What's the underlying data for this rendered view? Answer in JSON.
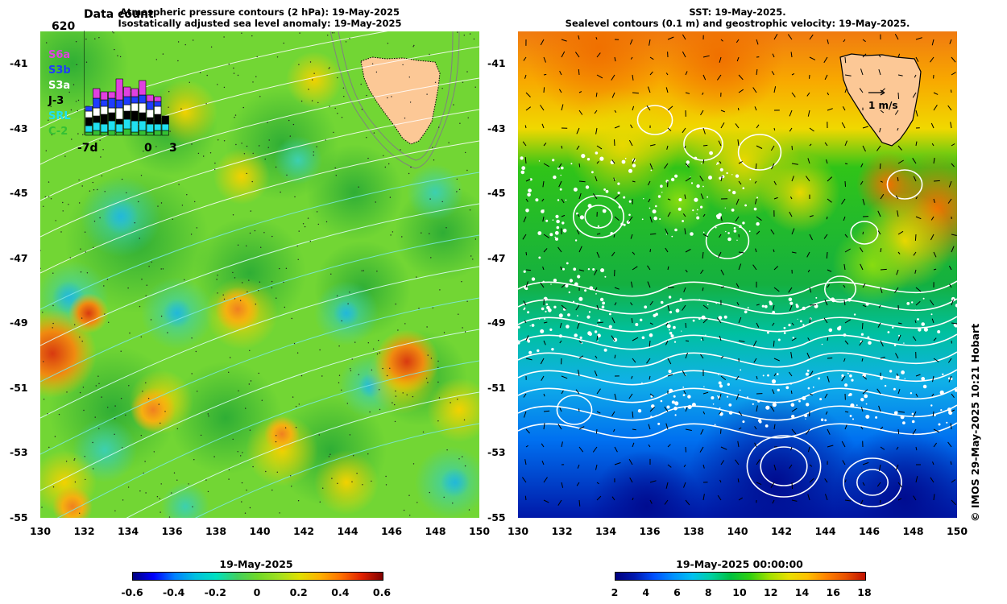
{
  "left_panel": {
    "title_line1": "Atmospheric pressure contours (2 hPa): 19-May-2025",
    "title_line2": "Isostatically adjusted sea level anomaly: 19-May-2025",
    "inset": {
      "title": "Data count",
      "count": "620",
      "missions": [
        {
          "label": "S6a",
          "color": "#e040e0"
        },
        {
          "label": "S3b",
          "color": "#1e3cff"
        },
        {
          "label": "S3a",
          "color": "#ffffff"
        },
        {
          "label": "J-3",
          "color": "#000000"
        },
        {
          "label": "SRL",
          "color": "#20e0f0"
        },
        {
          "label": "C-2",
          "color": "#34c034"
        }
      ],
      "x_labels": [
        "-7d",
        "0",
        "3"
      ]
    },
    "colorbar": {
      "date": "19-May-2025",
      "ticks": [
        "-0.6",
        "-0.4",
        "-0.2",
        "0",
        "0.2",
        "0.4",
        "0.6"
      ]
    }
  },
  "right_panel": {
    "title_line1": "SST: 19-May-2025.",
    "title_line2": "Sealevel contours (0.1 m) and geostrophic velocity: 19-May-2025.",
    "velocity_key": "1 m/s",
    "colorbar": {
      "date": "19-May-2025 00:00:00",
      "ticks": [
        "2",
        "4",
        "6",
        "8",
        "10",
        "12",
        "14",
        "16",
        "18"
      ]
    }
  },
  "axes": {
    "lat_ticks": [
      "-41",
      "-43",
      "-45",
      "-47",
      "-49",
      "-51",
      "-53",
      "-55"
    ],
    "lon_ticks": [
      "130",
      "132",
      "134",
      "136",
      "138",
      "140",
      "142",
      "144",
      "146",
      "148",
      "150"
    ]
  },
  "credit": "© IMOS 29-May-2025 10:21 Hobart",
  "colors": {
    "land": "#fcc896",
    "sla_palette": [
      "#00007f",
      "#0000ff",
      "#0080ff",
      "#00c0e0",
      "#00e0c0",
      "#40d060",
      "#70d828",
      "#a0e020",
      "#e0e000",
      "#ffb000",
      "#ff7000",
      "#e02000",
      "#800000"
    ],
    "sst_palette": [
      "#00007f",
      "#0018b0",
      "#0050ff",
      "#0090ff",
      "#00c0f0",
      "#00d0a0",
      "#00c040",
      "#30d010",
      "#a0e000",
      "#e8e000",
      "#ffc000",
      "#ff8000",
      "#e85000",
      "#c01000"
    ]
  }
}
